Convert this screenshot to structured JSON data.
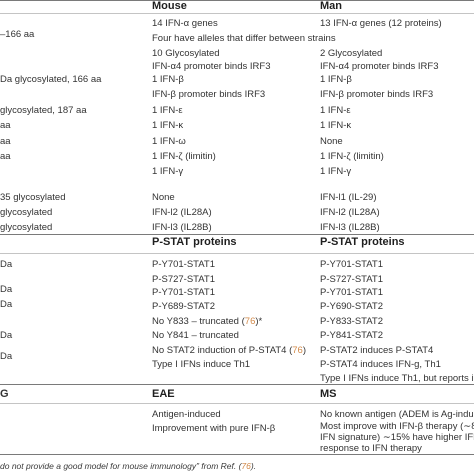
{
  "headers": {
    "mouse": "Mouse",
    "man": "Man",
    "pstat_mouse": "P-STAT proteins",
    "pstat_man": "P-STAT proteins",
    "eae": "EAE",
    "ms": "MS"
  },
  "left_fragments": [
    "–166 aa",
    "Da glycosylated, 166 aa",
    "glycosylated, 187 aa",
    " aa",
    "aa",
    "aa",
    "35 glycosylated",
    "glycosylated",
    "glycosylated",
    "Da",
    "Da",
    "Da",
    "Da",
    "Da",
    "G"
  ],
  "mouse": [
    "14 IFN-α genes",
    "Four have alleles that differ between strains",
    "10 Glycosylated",
    "IFN-α4 promoter binds IRF3",
    "1 IFN-β",
    "IFN-β promoter binds IRF3",
    "1 IFN-ε",
    "1 IFN-κ",
    "1 IFN-ω",
    "1 IFN-ζ (limitin)",
    "1 IFN-γ",
    "None",
    "IFN-l2 (IL28A)",
    "IFN-l3 (IL28B)",
    "P-Y701-STAT1",
    "P-S727-STAT1",
    "P-Y701-STAT1",
    "P-Y689-STAT2",
    "No Y833 – truncated (",
    "76",
    ")*",
    "No Y841 – truncated",
    "No STAT2 induction of P-STAT4 (",
    "76",
    ")",
    "Type I IFNs induce Th1",
    "Antigen-induced",
    "Improvement with pure IFN-β"
  ],
  "man": [
    "13 IFN-α genes (12 proteins)",
    "2 Glycosylated",
    "IFN-α4 promoter binds IRF3",
    "1 IFN-β",
    "IFN-β promoter binds IRF3",
    "1 IFN-ε",
    "1 IFN-κ",
    "None",
    "1 IFN-ζ (limitin)",
    "1 IFN-γ",
    "IFN-l1 (IL-29)",
    "IFN-l2 (IL28A)",
    "IFN-l3 (IL28B)",
    "P-Y701-STAT1",
    "P-S727-STAT1",
    "P-Y701-STAT1",
    "P-Y690-STAT2",
    "P-Y833-STAT2",
    "P-Y841-STAT2",
    "P-STAT2 induces P-STAT4",
    "P-STAT4 induces IFN-g, Th1",
    "Type I IFNs induce Th1, but reports in MS",
    "No known antigen (ADEM is Ag-induced)",
    "Most improve with IFN-β therapy (∼85%",
    "IFN signature) ∼15% have higher IFN sig",
    "response to IFN therapy"
  ],
  "footnote": {
    "text": "do not provide a good model for mouse immunology” from Ref. (",
    "ref": "76",
    "end": ")."
  }
}
